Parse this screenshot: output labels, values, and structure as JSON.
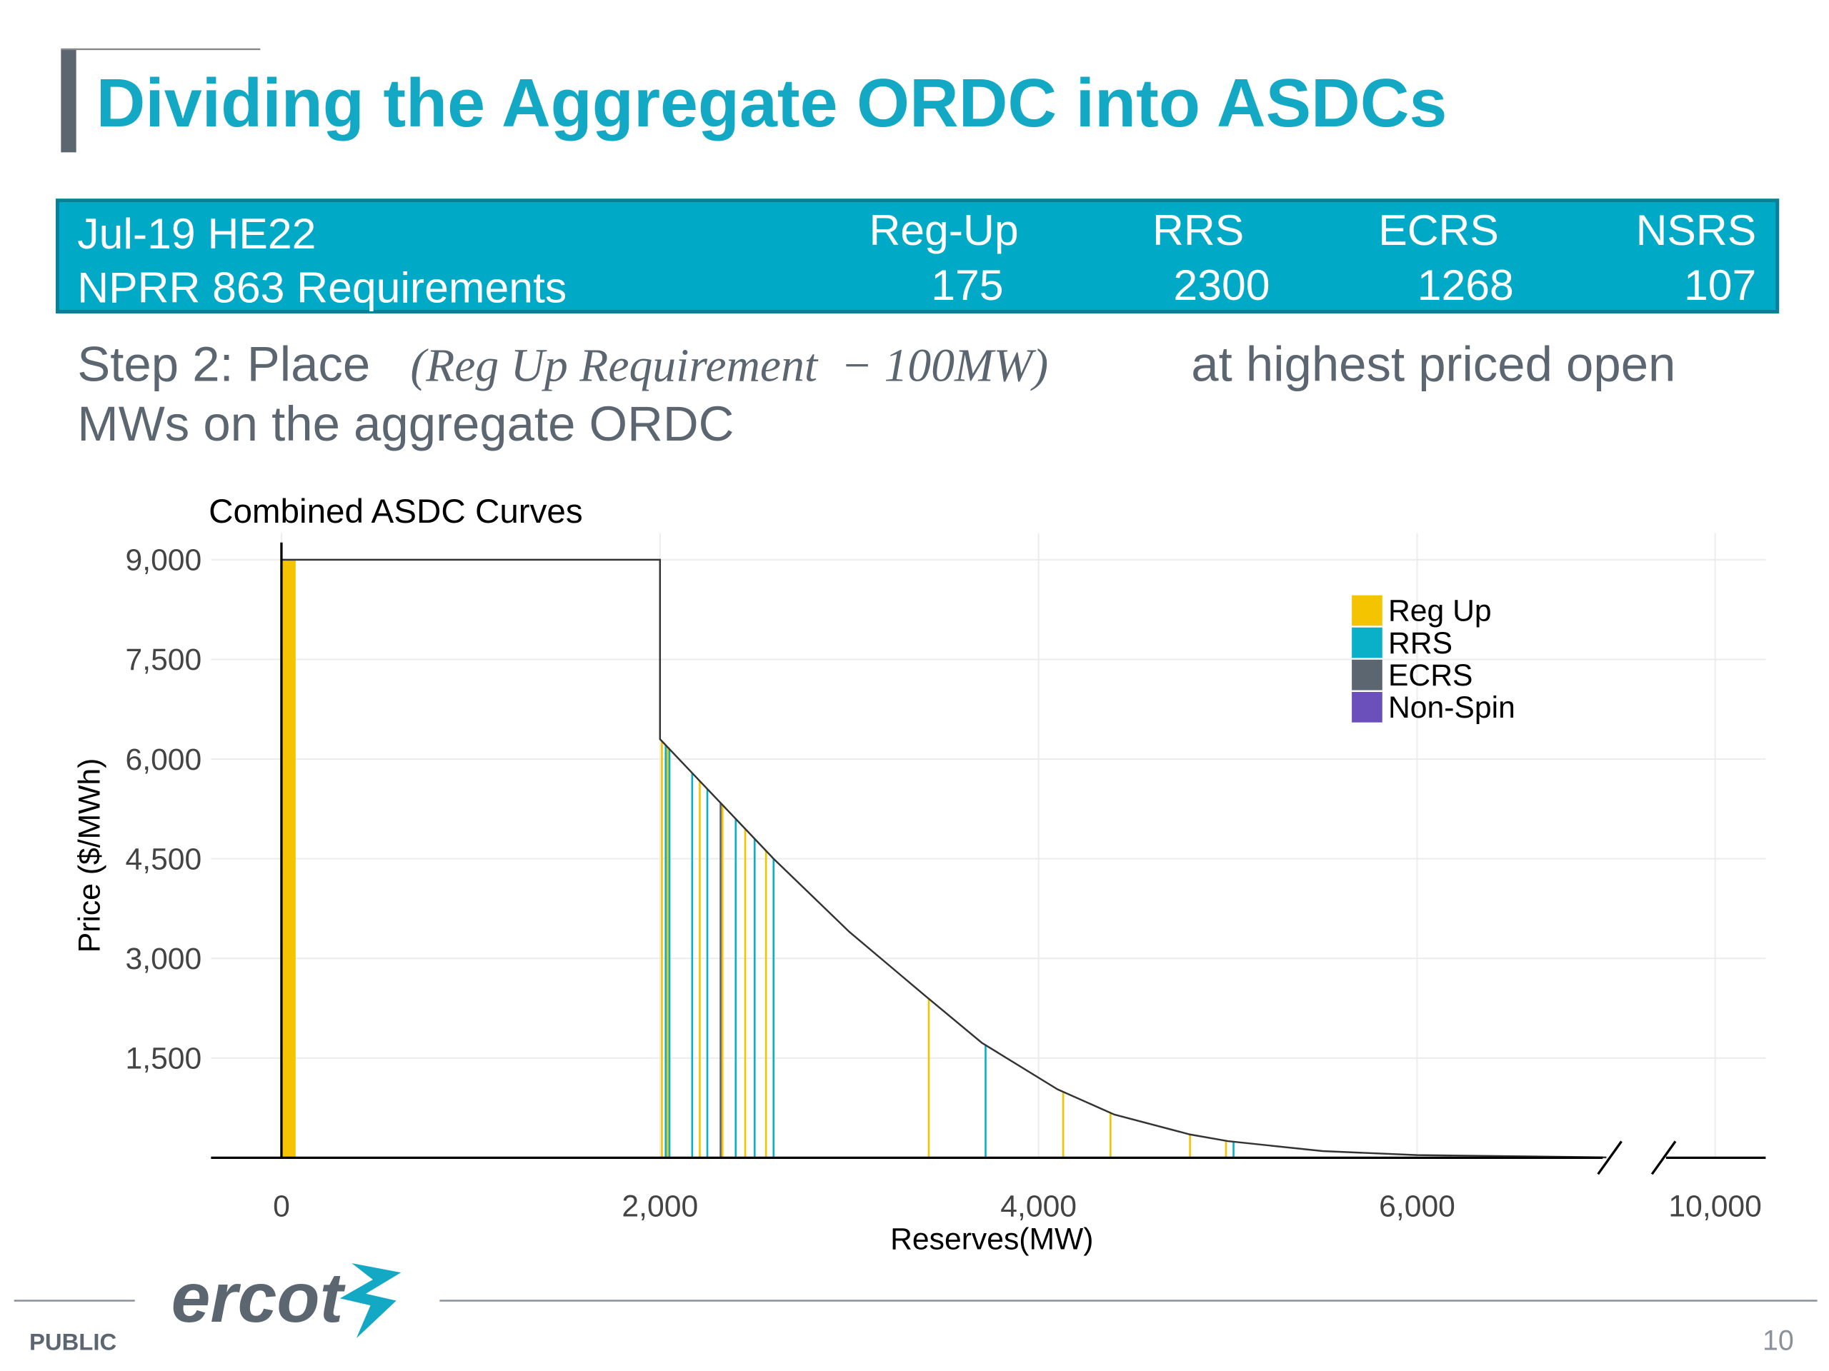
{
  "header": {
    "title": "Dividing the Aggregate ORDC into ASDCs"
  },
  "table": {
    "rows": [
      [
        "Jul-19 HE22",
        "Reg-Up",
        "RRS",
        "ECRS",
        "NSRS"
      ],
      [
        "NPRR 863 Requirements",
        175,
        2300,
        1268,
        107
      ]
    ]
  },
  "step": {
    "prefix": "Step 2:  Place",
    "formula": "(Reg Up Requirement  − 100MW)",
    "line1_end": "at highest priced open",
    "line2": "MWs on the aggregate ORDC"
  },
  "chart_data": {
    "type": "asdc",
    "title": "Combined ASDC Curves",
    "x_label": "Reserves(MW)",
    "y_label": "Price ($/MWh)",
    "xlim": [
      -372,
      10270
    ],
    "xbreak": [
      7030,
      9700
    ],
    "ylim": [
      0,
      9400
    ],
    "xticks": [
      0,
      {
        "value": 2000,
        "label": "2,000"
      },
      {
        "value": 4000,
        "label": "4,000"
      },
      {
        "value": 6000,
        "label": "6,000"
      },
      {
        "value": 10000,
        "label": "10,000"
      }
    ],
    "yticks": [
      {
        "value": 1500,
        "label": "1,500"
      },
      {
        "value": 3000,
        "label": "3,000"
      },
      {
        "value": 4500,
        "label": "4,500"
      },
      {
        "value": 6000,
        "label": "6,000"
      },
      {
        "value": 7500,
        "label": "7,500"
      },
      {
        "value": 9000,
        "label": "9,000"
      }
    ],
    "grid": true,
    "legend": "top-right",
    "curve": {
      "color": "#333333",
      "x": [
        0,
        2000,
        2000,
        2200,
        2400,
        2600,
        3000,
        3400,
        3700,
        4100,
        4400,
        4800,
        5000,
        5500,
        6000,
        7000
      ],
      "y": [
        9000,
        9000,
        6300,
        5700,
        5100,
        4500,
        3400,
        2440,
        1730,
        1030,
        650,
        350,
        250,
        100,
        40,
        5
      ]
    },
    "series": [
      {
        "name": "Reg Up",
        "color": "#f5c400",
        "bar_x": [
          0,
          75
        ],
        "bar_y": 9000,
        "x": [
          2010,
          2040,
          2210,
          2330,
          2450,
          2560,
          3420,
          4130,
          4380,
          4800,
          4990
        ]
      },
      {
        "name": "RRS",
        "color": "#0ab0c8",
        "x": [
          2030,
          2050,
          2170,
          2250,
          2400,
          2500,
          2600,
          3720,
          5030
        ]
      },
      {
        "name": "ECRS",
        "color": "#5b6670",
        "x": [
          2320
        ]
      },
      {
        "name": "Non-Spin",
        "color": "#6b4fbb",
        "x": []
      }
    ]
  },
  "footer": {
    "classification": "PUBLIC",
    "page": "10",
    "logo": "ercot"
  }
}
